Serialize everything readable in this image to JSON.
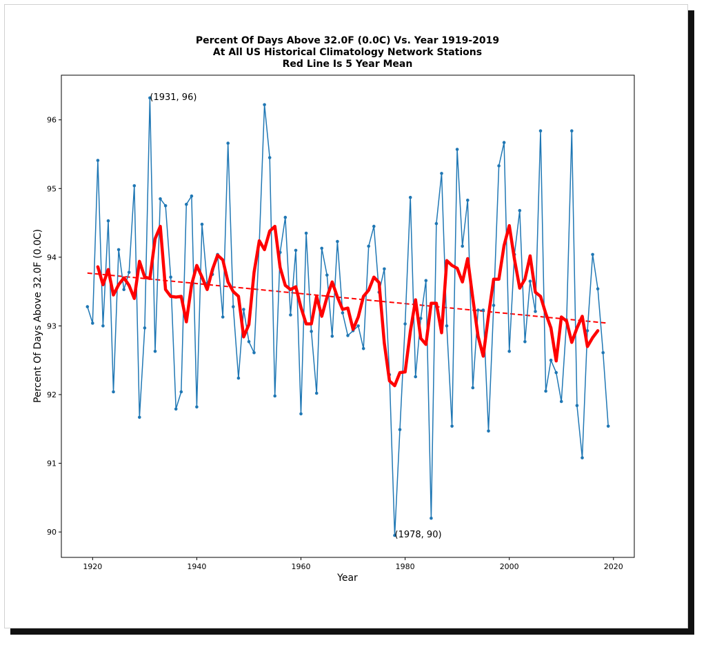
{
  "chart_data": {
    "type": "line",
    "title_lines": [
      "Percent Of Days Above 32.0F (0.0C) Vs. Year 1919-2019",
      "At All US Historical Climatology Network Stations",
      "Red Line Is 5 Year Mean"
    ],
    "xlabel": "Year",
    "ylabel": "Percent Of Days Above 32.0F (0.0C)",
    "xlim": [
      1914,
      2024
    ],
    "ylim": [
      89.63,
      96.65
    ],
    "xticks": [
      1920,
      1940,
      1960,
      1980,
      2000,
      2020
    ],
    "yticks": [
      90,
      91,
      92,
      93,
      94,
      95,
      96
    ],
    "grid": false,
    "colors": {
      "annual": "#1f77b4",
      "mean": "#ff0000",
      "trend": "#ff0000"
    },
    "series": [
      {
        "style": "line-markers",
        "x": [
          1919,
          1920,
          1921,
          1922,
          1923,
          1924,
          1925,
          1926,
          1927,
          1928,
          1929,
          1930,
          1931,
          1932,
          1933,
          1934,
          1935,
          1936,
          1937,
          1938,
          1939,
          1940,
          1941,
          1942,
          1943,
          1944,
          1945,
          1946,
          1947,
          1948,
          1949,
          1950,
          1951,
          1952,
          1953,
          1954,
          1955,
          1956,
          1957,
          1958,
          1959,
          1960,
          1961,
          1962,
          1963,
          1964,
          1965,
          1966,
          1967,
          1968,
          1969,
          1970,
          1971,
          1972,
          1973,
          1974,
          1975,
          1976,
          1977,
          1978,
          1979,
          1980,
          1981,
          1982,
          1983,
          1984,
          1985,
          1986,
          1987,
          1988,
          1989,
          1990,
          1991,
          1992,
          1993,
          1994,
          1995,
          1996,
          1997,
          1998,
          1999,
          2000,
          2001,
          2002,
          2003,
          2004,
          2005,
          2006,
          2007,
          2008,
          2009,
          2010,
          2011,
          2012,
          2013,
          2014,
          2015,
          2016,
          2017,
          2018,
          2019
        ],
        "y": [
          93.28,
          93.04,
          95.41,
          93.0,
          94.53,
          92.04,
          94.11,
          93.53,
          93.78,
          95.04,
          91.67,
          92.97,
          96.32,
          92.63,
          94.85,
          94.75,
          93.71,
          91.79,
          92.04,
          94.77,
          94.89,
          91.82,
          94.48,
          93.62,
          93.75,
          94.04,
          93.13,
          95.66,
          93.28,
          92.24,
          93.24,
          92.77,
          92.61,
          94.21,
          96.22,
          95.45,
          91.98,
          94.07,
          94.58,
          93.16,
          94.1,
          91.72,
          94.35,
          92.92,
          92.02,
          94.13,
          93.74,
          92.85,
          94.23,
          93.19,
          92.86,
          92.93,
          93.0,
          92.67,
          94.16,
          94.45,
          93.49,
          93.83,
          92.29,
          89.95,
          91.49,
          93.03,
          94.87,
          92.26,
          93.11,
          93.66,
          90.2,
          94.49,
          95.22,
          93.0,
          91.54,
          95.57,
          94.16,
          94.83,
          92.1,
          93.23,
          93.23,
          91.47,
          93.3,
          95.33,
          95.67,
          92.63,
          94.04,
          94.68,
          92.77,
          93.65,
          93.21,
          95.84,
          92.05,
          92.5,
          92.32,
          91.9,
          93.07,
          95.84,
          91.84,
          91.08,
          92.93,
          94.04,
          93.54,
          92.61,
          91.54
        ]
      },
      {
        "name": "Red Line Is 5 Year Mean",
        "style": "thick-line",
        "x": [
          1921,
          1922,
          1923,
          1924,
          1925,
          1926,
          1927,
          1928,
          1929,
          1930,
          1931,
          1932,
          1933,
          1934,
          1935,
          1936,
          1937,
          1938,
          1939,
          1940,
          1941,
          1942,
          1943,
          1944,
          1945,
          1946,
          1947,
          1948,
          1949,
          1950,
          1951,
          1952,
          1953,
          1954,
          1955,
          1956,
          1957,
          1958,
          1959,
          1960,
          1961,
          1962,
          1963,
          1964,
          1965,
          1966,
          1967,
          1968,
          1969,
          1970,
          1971,
          1972,
          1973,
          1974,
          1975,
          1976,
          1977,
          1978,
          1979,
          1980,
          1981,
          1982,
          1983,
          1984,
          1985,
          1986,
          1987,
          1988,
          1989,
          1990,
          1991,
          1992,
          1993,
          1994,
          1995,
          1996,
          1997,
          1998,
          1999,
          2000,
          2001,
          2002,
          2003,
          2004,
          2005,
          2006,
          2007,
          2008,
          2009,
          2010,
          2011,
          2012,
          2013,
          2014,
          2015,
          2016,
          2017
        ],
        "y": [
          93.86,
          93.6,
          93.82,
          93.45,
          93.6,
          93.7,
          93.59,
          93.4,
          93.94,
          93.71,
          93.69,
          94.27,
          94.45,
          93.53,
          93.43,
          93.42,
          93.43,
          93.06,
          93.6,
          93.88,
          93.71,
          93.53,
          93.82,
          94.03,
          93.96,
          93.64,
          93.5,
          93.43,
          92.84,
          93.02,
          93.78,
          94.24,
          94.11,
          94.38,
          94.45,
          93.85,
          93.59,
          93.53,
          93.57,
          93.27,
          93.03,
          93.03,
          93.43,
          93.14,
          93.42,
          93.64,
          93.42,
          93.24,
          93.26,
          92.95,
          93.13,
          93.43,
          93.52,
          93.71,
          93.63,
          92.75,
          92.2,
          92.13,
          92.32,
          92.33,
          92.92,
          93.38,
          92.82,
          92.73,
          93.33,
          93.33,
          92.9,
          93.95,
          93.88,
          93.84,
          93.64,
          93.98,
          93.4,
          92.85,
          92.56,
          93.15,
          93.68,
          93.68,
          94.17,
          94.46,
          93.97,
          93.55,
          93.68,
          94.02,
          93.49,
          93.43,
          93.18,
          92.97,
          92.49,
          93.13,
          93.07,
          92.76,
          92.97,
          93.14,
          92.7,
          92.83,
          92.93
        ]
      },
      {
        "style": "dashed-line",
        "x": [
          1919,
          2019
        ],
        "y": [
          93.77,
          93.04
        ]
      }
    ],
    "annotations": [
      {
        "text": "(1931, 96)",
        "x": 1931,
        "y": 96.32
      },
      {
        "text": "(1978, 90)",
        "x": 1978,
        "y": 89.95
      }
    ]
  }
}
